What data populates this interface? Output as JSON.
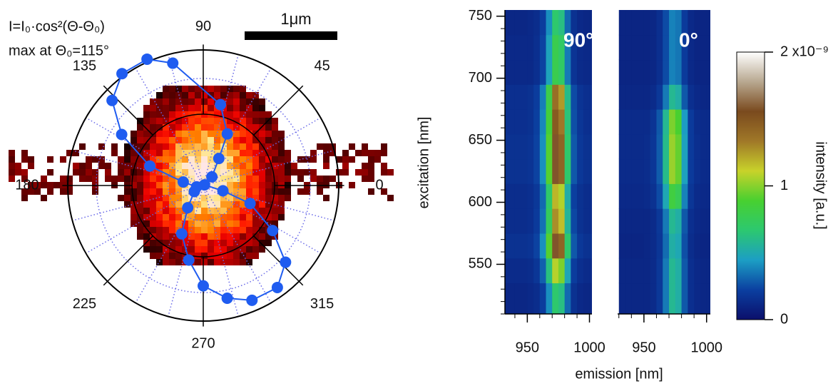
{
  "chart_data": [
    {
      "type": "polar",
      "annotations": [
        "I=I₀·cos²(Θ-Θ₀)",
        "max at Θ₀=115°"
      ],
      "scalebar_label": "1μm",
      "rlim": [
        0,
        1
      ],
      "thetaticks": [
        0,
        45,
        90,
        135,
        180,
        225,
        270,
        315
      ],
      "color": "#1f5cf0",
      "theta": [
        27,
        45,
        60,
        65,
        78,
        104,
        114,
        126,
        137,
        148,
        160,
        170,
        191,
        214,
        235,
        246,
        259,
        270,
        282,
        293,
        306,
        317,
        327,
        339,
        345
      ],
      "r": [
        0.01,
        0.09,
        0.23,
        0.42,
        0.61,
        0.93,
        1.02,
        1.02,
        0.92,
        0.71,
        0.42,
        0.15,
        0.05,
        0.08,
        0.2,
        0.39,
        0.56,
        0.74,
        0.85,
        0.92,
        0.93,
        0.83,
        0.61,
        0.37,
        0.15
      ]
    },
    {
      "type": "heatmap",
      "title": "90°",
      "xlabel": "emission [nm]",
      "ylabel": "excitation [nm]",
      "xlim": [
        932,
        1002
      ],
      "ylim": [
        510,
        755
      ],
      "xticks": [
        950,
        1000
      ],
      "yticks": [
        550,
        600,
        650,
        700,
        750
      ],
      "x_bins": [
        930,
        935,
        940,
        945,
        950,
        955,
        960,
        965,
        970,
        975,
        980,
        985,
        990,
        995,
        1000,
        1005
      ],
      "y_bins": [
        510,
        535,
        555,
        575,
        595,
        615,
        635,
        655,
        675,
        695,
        715,
        735,
        755
      ],
      "values": [
        [
          0.11,
          0.11,
          0.11,
          0.11,
          0.12,
          0.14,
          0.21,
          0.41,
          0.68,
          0.62,
          0.32,
          0.16,
          0.12,
          0.11,
          0.11
        ],
        [
          0.13,
          0.13,
          0.13,
          0.13,
          0.14,
          0.18,
          0.3,
          0.63,
          1.08,
          0.98,
          0.48,
          0.21,
          0.15,
          0.13,
          0.13
        ],
        [
          0.16,
          0.16,
          0.16,
          0.16,
          0.17,
          0.23,
          0.41,
          0.91,
          1.58,
          1.43,
          0.68,
          0.28,
          0.19,
          0.16,
          0.16
        ],
        [
          0.14,
          0.14,
          0.14,
          0.14,
          0.15,
          0.2,
          0.34,
          0.74,
          1.28,
          1.16,
          0.56,
          0.24,
          0.16,
          0.14,
          0.14
        ],
        [
          0.14,
          0.14,
          0.14,
          0.14,
          0.15,
          0.19,
          0.32,
          0.69,
          1.18,
          1.07,
          0.52,
          0.22,
          0.16,
          0.14,
          0.14
        ],
        [
          0.16,
          0.16,
          0.16,
          0.16,
          0.17,
          0.23,
          0.41,
          0.91,
          1.58,
          1.43,
          0.68,
          0.28,
          0.19,
          0.16,
          0.16
        ],
        [
          0.16,
          0.16,
          0.16,
          0.16,
          0.17,
          0.23,
          0.41,
          0.91,
          1.58,
          1.43,
          0.68,
          0.28,
          0.19,
          0.16,
          0.16
        ],
        [
          0.15,
          0.15,
          0.15,
          0.15,
          0.16,
          0.22,
          0.39,
          0.85,
          1.48,
          1.34,
          0.64,
          0.26,
          0.18,
          0.15,
          0.15
        ],
        [
          0.15,
          0.15,
          0.15,
          0.15,
          0.16,
          0.21,
          0.37,
          0.8,
          1.38,
          1.25,
          0.6,
          0.25,
          0.17,
          0.15,
          0.15
        ],
        [
          0.12,
          0.12,
          0.12,
          0.12,
          0.12,
          0.15,
          0.23,
          0.47,
          0.78,
          0.71,
          0.36,
          0.17,
          0.13,
          0.12,
          0.12
        ],
        [
          0.12,
          0.12,
          0.12,
          0.12,
          0.12,
          0.15,
          0.23,
          0.47,
          0.78,
          0.71,
          0.36,
          0.17,
          0.13,
          0.12,
          0.12
        ],
        [
          0.11,
          0.11,
          0.11,
          0.11,
          0.12,
          0.14,
          0.21,
          0.41,
          0.68,
          0.62,
          0.32,
          0.16,
          0.12,
          0.11,
          0.11
        ]
      ]
    },
    {
      "type": "heatmap",
      "title": "0°",
      "xlim": [
        929,
        1003
      ],
      "ylim": [
        510,
        755
      ],
      "xticks": [
        950,
        1000
      ],
      "x_bins": [
        930,
        935,
        940,
        945,
        950,
        955,
        960,
        965,
        970,
        975,
        980,
        985,
        990,
        995,
        1000,
        1005
      ],
      "y_bins": [
        510,
        535,
        555,
        575,
        595,
        615,
        635,
        655,
        675,
        695,
        715,
        735,
        755
      ],
      "values": [
        [
          0.11,
          0.11,
          0.11,
          0.11,
          0.11,
          0.13,
          0.19,
          0.36,
          0.58,
          0.53,
          0.28,
          0.15,
          0.12,
          0.11,
          0.11
        ],
        [
          0.11,
          0.11,
          0.11,
          0.11,
          0.11,
          0.13,
          0.19,
          0.36,
          0.58,
          0.53,
          0.28,
          0.15,
          0.12,
          0.11,
          0.11
        ],
        [
          0.1,
          0.1,
          0.1,
          0.1,
          0.11,
          0.13,
          0.18,
          0.33,
          0.53,
          0.49,
          0.26,
          0.14,
          0.11,
          0.1,
          0.1
        ],
        [
          0.11,
          0.11,
          0.11,
          0.11,
          0.11,
          0.13,
          0.19,
          0.36,
          0.58,
          0.53,
          0.28,
          0.15,
          0.12,
          0.11,
          0.11
        ],
        [
          0.12,
          0.12,
          0.12,
          0.12,
          0.13,
          0.16,
          0.25,
          0.49,
          0.83,
          0.76,
          0.38,
          0.18,
          0.13,
          0.12,
          0.12
        ],
        [
          0.13,
          0.13,
          0.13,
          0.13,
          0.14,
          0.18,
          0.29,
          0.6,
          1.03,
          0.94,
          0.46,
          0.2,
          0.15,
          0.13,
          0.13
        ],
        [
          0.13,
          0.13,
          0.13,
          0.13,
          0.14,
          0.18,
          0.29,
          0.6,
          1.03,
          0.94,
          0.46,
          0.2,
          0.15,
          0.13,
          0.13
        ],
        [
          0.13,
          0.13,
          0.13,
          0.13,
          0.13,
          0.17,
          0.28,
          0.58,
          0.98,
          0.89,
          0.44,
          0.2,
          0.14,
          0.13,
          0.13
        ],
        [
          0.11,
          0.11,
          0.11,
          0.11,
          0.11,
          0.13,
          0.19,
          0.36,
          0.58,
          0.53,
          0.28,
          0.15,
          0.12,
          0.11,
          0.11
        ],
        [
          0.1,
          0.1,
          0.1,
          0.1,
          0.1,
          0.11,
          0.15,
          0.25,
          0.38,
          0.35,
          0.2,
          0.12,
          0.1,
          0.1,
          0.1
        ],
        [
          0.1,
          0.1,
          0.1,
          0.1,
          0.1,
          0.11,
          0.15,
          0.25,
          0.38,
          0.35,
          0.2,
          0.12,
          0.1,
          0.1,
          0.1
        ],
        [
          0.1,
          0.1,
          0.1,
          0.1,
          0.1,
          0.11,
          0.15,
          0.25,
          0.38,
          0.35,
          0.2,
          0.12,
          0.1,
          0.1,
          0.1
        ]
      ]
    },
    {
      "type": "colorbar",
      "label": "intensity [a.u.]",
      "lim": [
        0,
        2
      ],
      "ticks": [
        0,
        1,
        {
          "value": 2,
          "label": "2 x10⁻⁹"
        }
      ],
      "colormap": [
        "#0b0f6b",
        "#0b3fa0",
        "#1c9ec4",
        "#2cc870",
        "#48d030",
        "#c8d22a",
        "#a07828",
        "#7a4a1e",
        "#b8a890",
        "#ffffff"
      ]
    }
  ]
}
